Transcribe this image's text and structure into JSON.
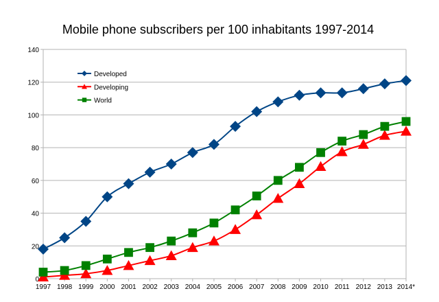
{
  "chart_data": {
    "type": "line",
    "title": "Mobile phone subscribers per 100 inhabitants 1997-2014",
    "xlabel": "",
    "ylabel": "",
    "categories": [
      "1997",
      "1998",
      "1999",
      "2000",
      "2001",
      "2002",
      "2003",
      "2004",
      "2005",
      "2006",
      "2007",
      "2008",
      "2009",
      "2010",
      "2011",
      "2012",
      "2013",
      "2014*"
    ],
    "ylim": [
      0,
      140
    ],
    "yticks": [
      0,
      20,
      40,
      60,
      80,
      100,
      120,
      140
    ],
    "grid": true,
    "legend_position": "top-left",
    "series": [
      {
        "name": "Developed",
        "color": "#004586",
        "marker": "diamond",
        "values": [
          18,
          25,
          35,
          50,
          58,
          65,
          70,
          77,
          82,
          93,
          102,
          108,
          112,
          113.5,
          113.5,
          116,
          119,
          121
        ]
      },
      {
        "name": "Developing",
        "color": "#ff0000",
        "marker": "triangle",
        "values": [
          1,
          2,
          3,
          5,
          8,
          11,
          14,
          19,
          23,
          30,
          39,
          49,
          58,
          68.5,
          77.5,
          82,
          87.5,
          90
        ]
      },
      {
        "name": "World",
        "color": "#008000",
        "marker": "square",
        "values": [
          4,
          5,
          8,
          12,
          16,
          19,
          23,
          28,
          34,
          42,
          50.5,
          60,
          68,
          77,
          84,
          88,
          93,
          96
        ]
      }
    ]
  }
}
